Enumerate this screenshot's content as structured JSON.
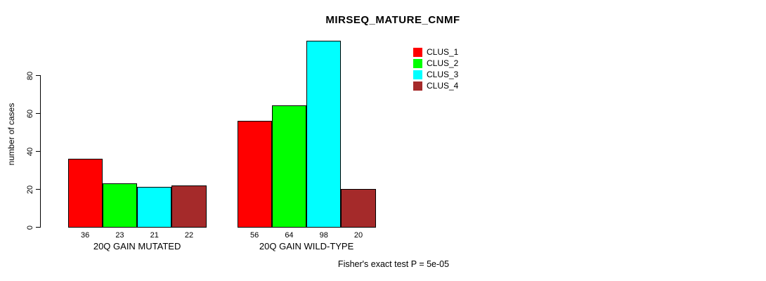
{
  "chart_data": {
    "type": "bar",
    "title": "MIRSEQ_MATURE_CNMF",
    "xlabel": "",
    "ylabel": "number of cases",
    "categories": [
      "20Q GAIN MUTATED",
      "20Q GAIN WILD-TYPE"
    ],
    "series": [
      {
        "name": "CLUS_1",
        "color": "#ff0000",
        "values": [
          36,
          56
        ]
      },
      {
        "name": "CLUS_2",
        "color": "#00ff00",
        "values": [
          23,
          64
        ]
      },
      {
        "name": "CLUS_3",
        "color": "#00ffff",
        "values": [
          21,
          98
        ]
      },
      {
        "name": "CLUS_4",
        "color": "#a52a2a",
        "values": [
          22,
          20
        ]
      }
    ],
    "bar_value_labels_shown": true,
    "yticks": [
      0,
      20,
      40,
      60,
      80
    ],
    "ylim": [
      0,
      100
    ],
    "grid": false,
    "legend_position": "top-right",
    "legend_entries": [
      "CLUS_1",
      "CLUS_2",
      "CLUS_3",
      "CLUS_4"
    ],
    "annotation": "Fisher's exact test P = 5e-05"
  }
}
